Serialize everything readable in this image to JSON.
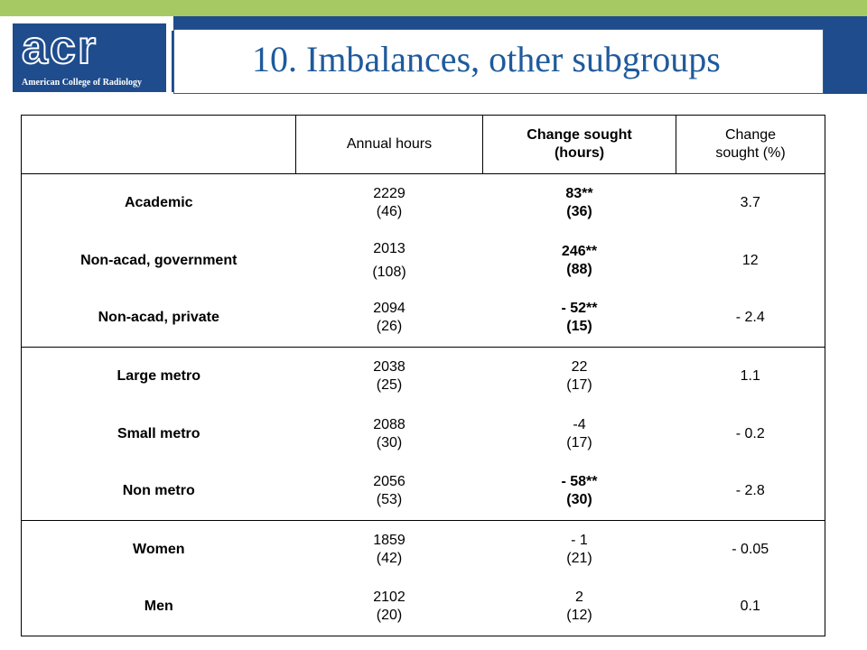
{
  "colors": {
    "top_stripe": "#a6c964",
    "header_band": "#1e4c8c",
    "title_text": "#1f5a9c"
  },
  "logo": {
    "wordmark": "acr",
    "tagline": "American College of Radiology"
  },
  "title": "10. Imbalances, other subgroups",
  "table": {
    "headers": {
      "blank": "",
      "annual_hours": "Annual hours",
      "change_hours": [
        "Change sought",
        "(hours)"
      ],
      "change_pct": [
        "Change",
        "sought (%)"
      ]
    },
    "rows": [
      {
        "label": "Academic",
        "annual": [
          "2229",
          "(46)"
        ],
        "change": [
          "83**",
          "(36)"
        ],
        "pct": "3.7"
      },
      {
        "label": "Non-acad, government",
        "annual": [
          "2013",
          "(108)"
        ],
        "change": [
          "246**",
          "(88)"
        ],
        "pct": "12"
      },
      {
        "label": "Non-acad, private",
        "annual": [
          "2094",
          "(26)"
        ],
        "change": [
          "- 52**",
          "(15)"
        ],
        "pct": "- 2.4"
      },
      {
        "label": "Large metro",
        "annual": [
          "2038",
          "(25)"
        ],
        "change": [
          "22",
          "(17)"
        ],
        "pct": "1.1"
      },
      {
        "label": "Small metro",
        "annual": [
          "2088",
          "(30)"
        ],
        "change": [
          "-4",
          "(17)"
        ],
        "pct": "- 0.2"
      },
      {
        "label": "Non metro",
        "annual": [
          "2056",
          "(53)"
        ],
        "change": [
          "- 58**",
          "(30)"
        ],
        "pct": "- 2.8"
      },
      {
        "label": "Women",
        "annual": [
          "1859",
          "(42)"
        ],
        "change": [
          "- 1",
          "(21)"
        ],
        "pct": "- 0.05"
      },
      {
        "label": "Men",
        "annual": [
          "2102",
          "(20)"
        ],
        "change": [
          "2",
          "(12)"
        ],
        "pct": "0.1"
      }
    ]
  }
}
